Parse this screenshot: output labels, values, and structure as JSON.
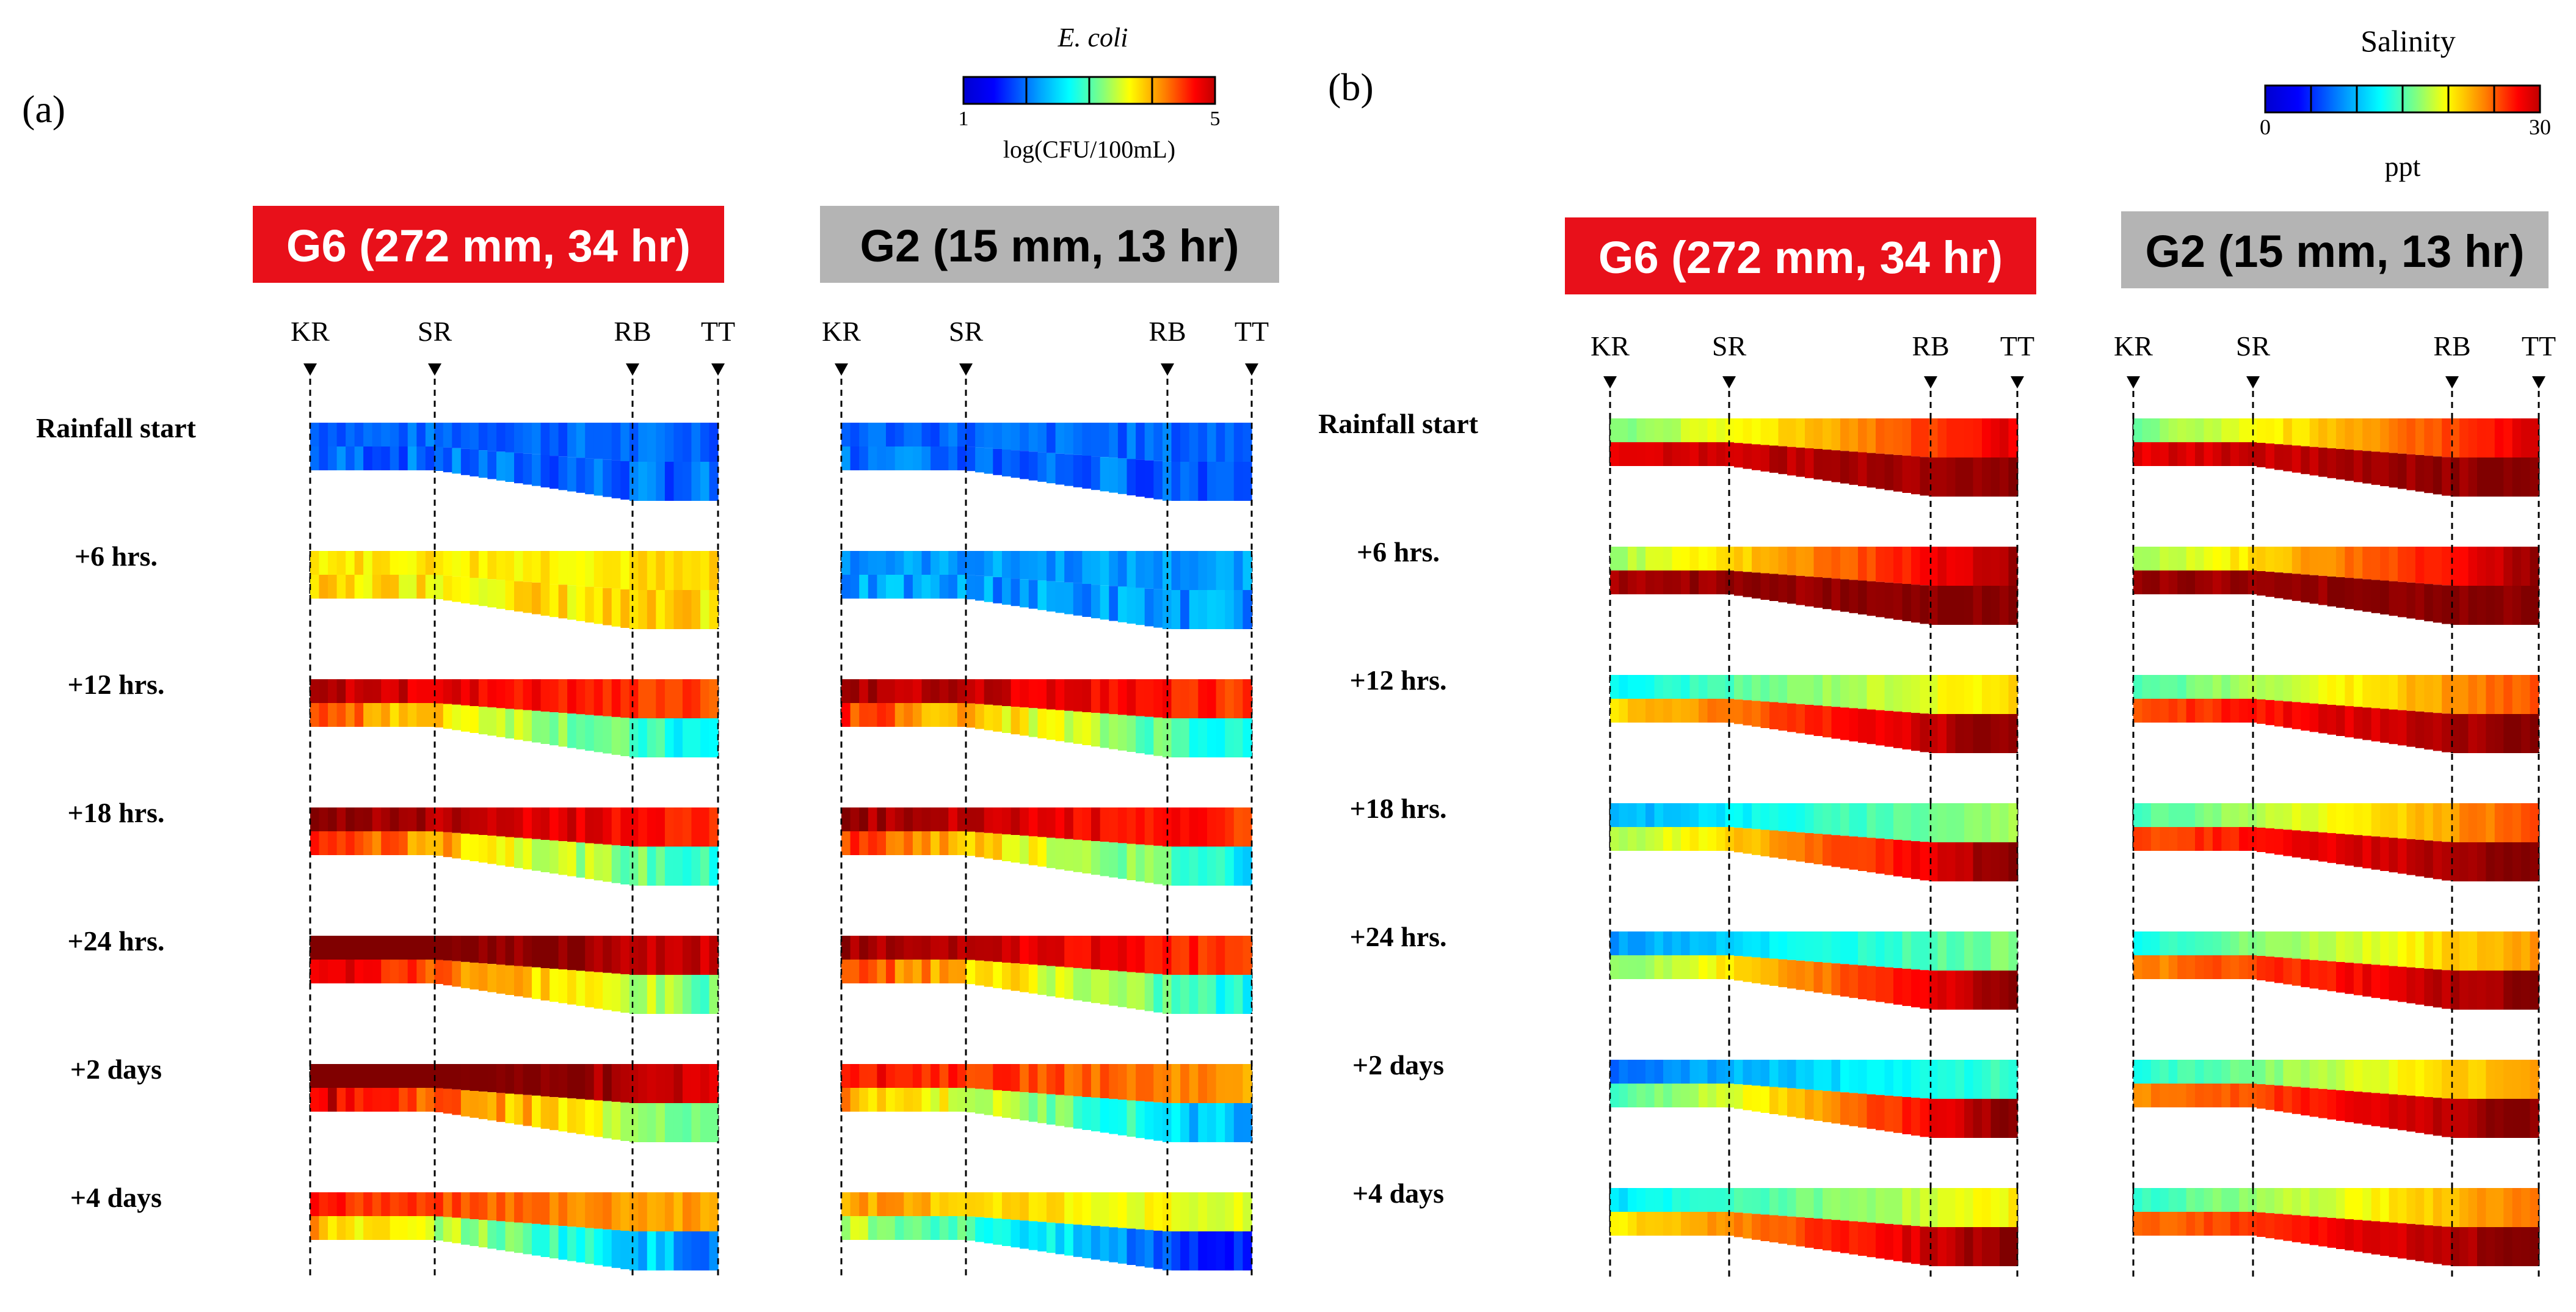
{
  "panels": [
    {
      "id": "a",
      "label": "(a)",
      "variable": "ecoli",
      "colorbar": {
        "title": "E. coli",
        "unit": "log(CFU/100mL)",
        "min_label": "1",
        "max_label": "5"
      },
      "cases": [
        {
          "title": "G6 (272 mm, 34 hr)",
          "box_color": "#e8101a"
        },
        {
          "title": "G2 (15 mm, 13 hr)",
          "box_color": "#b4b4b4"
        }
      ]
    },
    {
      "id": "b",
      "label": "(b)",
      "variable": "salinity",
      "colorbar": {
        "title": "Salinity",
        "unit": "ppt",
        "min_label": "0",
        "max_label": "30"
      },
      "cases": [
        {
          "title": "G6 (272 mm, 34 hr)",
          "box_color": "#e8101a"
        },
        {
          "title": "G2 (15 mm, 13 hr)",
          "box_color": "#b4b4b4"
        }
      ]
    }
  ],
  "stations": [
    "KR",
    "SR",
    "RB",
    "TT"
  ],
  "time_labels": [
    "Rainfall start",
    "+6 hrs.",
    "+12 hrs.",
    "+18 hrs.",
    "+24 hrs.",
    "+2 days",
    "+4 days"
  ],
  "ecoli_levels": {
    "G6": [
      1.9,
      3.6,
      4.2,
      4.4,
      4.7,
      4.7,
      3.8
    ],
    "G2": [
      1.9,
      2.1,
      4.3,
      4.3,
      4.3,
      3.9,
      3.3
    ]
  },
  "salinity_levels": {
    "G6": [
      27,
      29,
      20,
      16,
      15,
      13,
      19
    ],
    "G2": [
      27,
      29,
      24,
      24,
      22,
      22,
      23
    ]
  },
  "colors": {
    "jet": [
      "#00008f",
      "#0000ff",
      "#0080ff",
      "#00ffff",
      "#80ff80",
      "#ffff00",
      "#ff8000",
      "#ff0000",
      "#800000"
    ],
    "box_red": "#e8101a",
    "box_gray": "#b4b4b4"
  }
}
